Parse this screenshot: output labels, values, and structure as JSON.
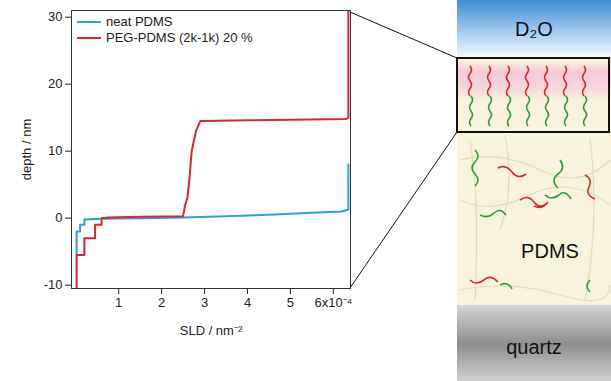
{
  "chart_data": {
    "type": "line",
    "xlabel": "SLD / nm⁻²",
    "ylabel": "depth / nm",
    "xlim": [
      -0.1,
      6.4
    ],
    "ylim": [
      -10.5,
      31
    ],
    "xticks": [
      1,
      2,
      3,
      4,
      5,
      {
        "value": 6,
        "label": "6x10⁻⁴"
      }
    ],
    "yticks": [
      -10,
      0,
      10,
      20,
      30
    ],
    "grid": false,
    "legend": "top-left",
    "series": [
      {
        "name": "neat PDMS",
        "color": "#2f9fe0",
        "x": [
          0.02,
          0.02,
          0.1,
          0.1,
          0.2,
          0.2,
          0.6,
          1.5,
          2.5,
          3.5,
          4.5,
          5.5,
          6.2,
          6.35,
          6.35
        ],
        "values": [
          -5.5,
          -2,
          -2,
          -1,
          -1,
          -0.2,
          -0.1,
          0,
          0.1,
          0.3,
          0.5,
          0.8,
          1.0,
          1.3,
          8
        ]
      },
      {
        "name": "PEG-PDMS (2k-1k) 20 %",
        "color": "#d9262f",
        "x": [
          0.02,
          0.02,
          0.2,
          0.2,
          0.45,
          0.45,
          0.6,
          0.6,
          0.75,
          1.5,
          2.5,
          2.55,
          2.6,
          2.65,
          2.7,
          2.8,
          2.9,
          4,
          5,
          6.3,
          6.35,
          6.35
        ],
        "values": [
          -10.5,
          -5.5,
          -5.5,
          -3,
          -3,
          -1,
          -1,
          0,
          0.1,
          0.2,
          0.3,
          2,
          3,
          6,
          10,
          13,
          14.5,
          14.6,
          14.7,
          14.8,
          15,
          31
        ]
      }
    ]
  },
  "diagram": {
    "layers": [
      "D₂O",
      "PDMS",
      "quartz"
    ]
  }
}
